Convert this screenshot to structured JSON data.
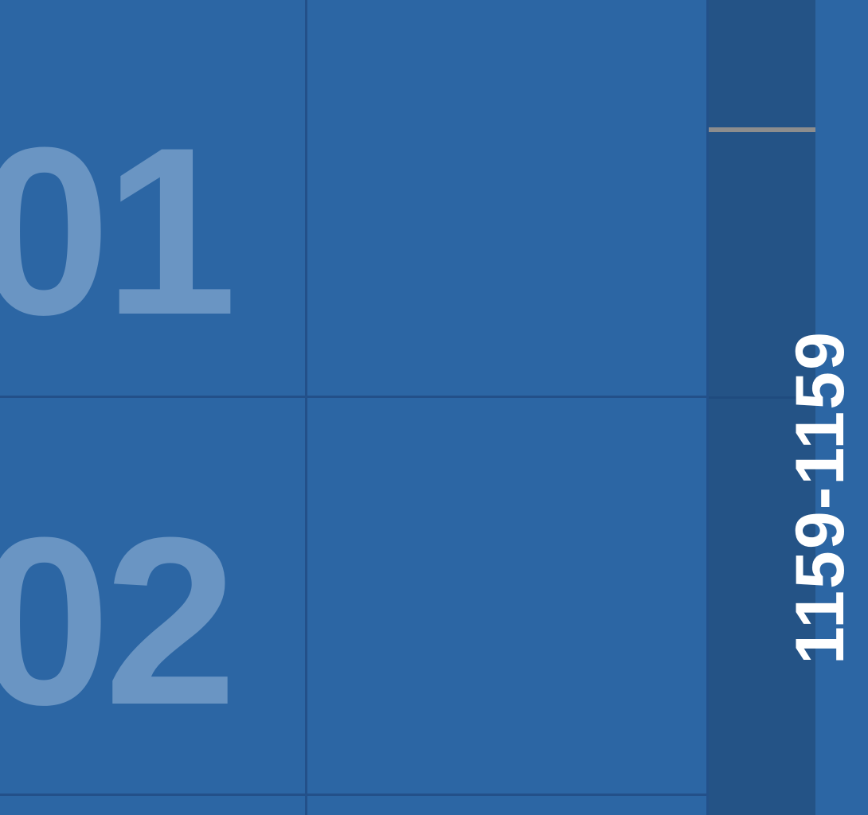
{
  "cells": [
    {
      "label": "01"
    },
    {
      "label": "02"
    }
  ],
  "right_panel": {
    "vertical_text": "1159-1159"
  },
  "colors": {
    "background": "#2c66a4",
    "grid_line": "#235089",
    "cell_label": "#6a95c3",
    "panel_bg": "#245386",
    "panel_divider": "#8d8d8d",
    "panel_text": "#ffffff"
  }
}
